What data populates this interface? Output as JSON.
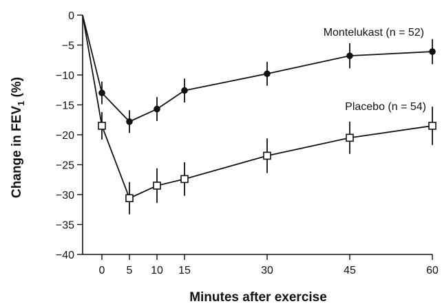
{
  "chart_data": {
    "type": "line",
    "title": "",
    "xlabel": "Minutes after exercise",
    "ylabel_main": "Change in FEV",
    "ylabel_sub": "1",
    "ylabel_tail": " (%)",
    "xlim": [
      -3.5,
      60
    ],
    "ylim": [
      -40,
      0
    ],
    "xticks": [
      0,
      5,
      10,
      15,
      30,
      45,
      60
    ],
    "yticks": [
      0,
      -5,
      -10,
      -15,
      -20,
      -25,
      -30,
      -35,
      -40
    ],
    "ytick_labels": [
      "0",
      "−5",
      "−10",
      "−15",
      "−20",
      "−25",
      "−30",
      "−35",
      "−40"
    ],
    "grid": false,
    "legend": "direct labels near line ends",
    "baseline_point": {
      "x": -3.5,
      "y": 0
    },
    "series": [
      {
        "name": "Montelukast (n = 52)",
        "marker": "filled-circle",
        "color": "#111111",
        "x": [
          0,
          5,
          10,
          15,
          30,
          45,
          60
        ],
        "y": [
          -13,
          -17.8,
          -15.7,
          -12.6,
          -9.8,
          -6.8,
          -6.1
        ],
        "err": [
          1.9,
          1.9,
          2.0,
          2.0,
          2.0,
          2.1,
          2.1
        ]
      },
      {
        "name": "Placebo (n = 54)",
        "marker": "open-square",
        "color": "#111111",
        "x": [
          0,
          5,
          10,
          15,
          30,
          45,
          60
        ],
        "y": [
          -18.5,
          -30.6,
          -28.5,
          -27.4,
          -23.5,
          -20.5,
          -18.5
        ],
        "err": [
          2.3,
          2.7,
          2.9,
          2.8,
          2.9,
          2.7,
          3.2
        ]
      }
    ]
  }
}
